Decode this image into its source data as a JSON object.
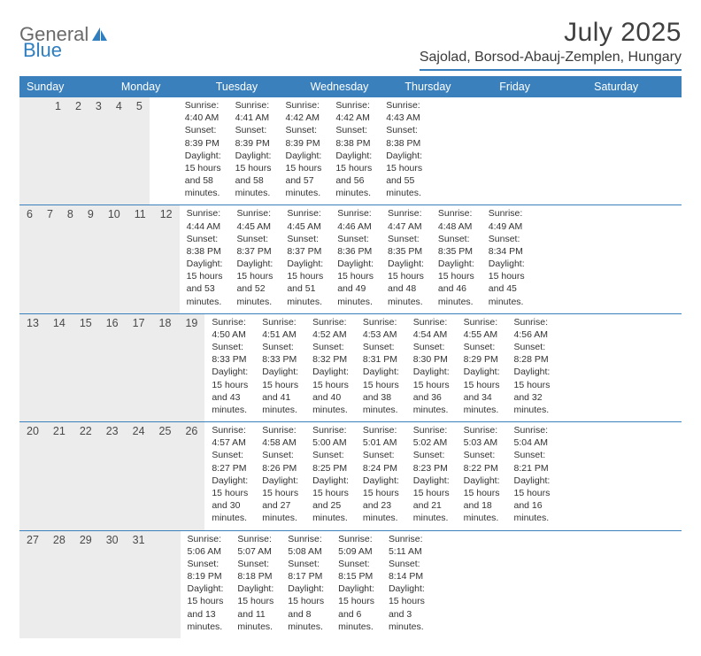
{
  "brand": {
    "name_part1": "General",
    "name_part2": "Blue",
    "text_color": "#6a6a6a",
    "accent_color": "#2f7ec0"
  },
  "title": "July 2025",
  "location": "Sajolad, Borsod-Abauj-Zemplen, Hungary",
  "colors": {
    "header_bar": "#3a80bd",
    "daynum_bg": "#ececec",
    "row_border": "#3a80bd",
    "text": "#333333",
    "title_text": "#404040"
  },
  "fonts": {
    "title_size": 30,
    "location_size": 16,
    "dow_size": 12.5,
    "daynum_size": 12.5,
    "cell_size": 10.5
  },
  "days_of_week": [
    "Sunday",
    "Monday",
    "Tuesday",
    "Wednesday",
    "Thursday",
    "Friday",
    "Saturday"
  ],
  "weeks": [
    [
      {
        "num": "",
        "lines": []
      },
      {
        "num": "",
        "lines": []
      },
      {
        "num": "1",
        "lines": [
          "Sunrise: 4:40 AM",
          "Sunset: 8:39 PM",
          "Daylight: 15 hours",
          "and 58 minutes."
        ]
      },
      {
        "num": "2",
        "lines": [
          "Sunrise: 4:41 AM",
          "Sunset: 8:39 PM",
          "Daylight: 15 hours",
          "and 58 minutes."
        ]
      },
      {
        "num": "3",
        "lines": [
          "Sunrise: 4:42 AM",
          "Sunset: 8:39 PM",
          "Daylight: 15 hours",
          "and 57 minutes."
        ]
      },
      {
        "num": "4",
        "lines": [
          "Sunrise: 4:42 AM",
          "Sunset: 8:38 PM",
          "Daylight: 15 hours",
          "and 56 minutes."
        ]
      },
      {
        "num": "5",
        "lines": [
          "Sunrise: 4:43 AM",
          "Sunset: 8:38 PM",
          "Daylight: 15 hours",
          "and 55 minutes."
        ]
      }
    ],
    [
      {
        "num": "6",
        "lines": [
          "Sunrise: 4:44 AM",
          "Sunset: 8:38 PM",
          "Daylight: 15 hours",
          "and 53 minutes."
        ]
      },
      {
        "num": "7",
        "lines": [
          "Sunrise: 4:45 AM",
          "Sunset: 8:37 PM",
          "Daylight: 15 hours",
          "and 52 minutes."
        ]
      },
      {
        "num": "8",
        "lines": [
          "Sunrise: 4:45 AM",
          "Sunset: 8:37 PM",
          "Daylight: 15 hours",
          "and 51 minutes."
        ]
      },
      {
        "num": "9",
        "lines": [
          "Sunrise: 4:46 AM",
          "Sunset: 8:36 PM",
          "Daylight: 15 hours",
          "and 49 minutes."
        ]
      },
      {
        "num": "10",
        "lines": [
          "Sunrise: 4:47 AM",
          "Sunset: 8:35 PM",
          "Daylight: 15 hours",
          "and 48 minutes."
        ]
      },
      {
        "num": "11",
        "lines": [
          "Sunrise: 4:48 AM",
          "Sunset: 8:35 PM",
          "Daylight: 15 hours",
          "and 46 minutes."
        ]
      },
      {
        "num": "12",
        "lines": [
          "Sunrise: 4:49 AM",
          "Sunset: 8:34 PM",
          "Daylight: 15 hours",
          "and 45 minutes."
        ]
      }
    ],
    [
      {
        "num": "13",
        "lines": [
          "Sunrise: 4:50 AM",
          "Sunset: 8:33 PM",
          "Daylight: 15 hours",
          "and 43 minutes."
        ]
      },
      {
        "num": "14",
        "lines": [
          "Sunrise: 4:51 AM",
          "Sunset: 8:33 PM",
          "Daylight: 15 hours",
          "and 41 minutes."
        ]
      },
      {
        "num": "15",
        "lines": [
          "Sunrise: 4:52 AM",
          "Sunset: 8:32 PM",
          "Daylight: 15 hours",
          "and 40 minutes."
        ]
      },
      {
        "num": "16",
        "lines": [
          "Sunrise: 4:53 AM",
          "Sunset: 8:31 PM",
          "Daylight: 15 hours",
          "and 38 minutes."
        ]
      },
      {
        "num": "17",
        "lines": [
          "Sunrise: 4:54 AM",
          "Sunset: 8:30 PM",
          "Daylight: 15 hours",
          "and 36 minutes."
        ]
      },
      {
        "num": "18",
        "lines": [
          "Sunrise: 4:55 AM",
          "Sunset: 8:29 PM",
          "Daylight: 15 hours",
          "and 34 minutes."
        ]
      },
      {
        "num": "19",
        "lines": [
          "Sunrise: 4:56 AM",
          "Sunset: 8:28 PM",
          "Daylight: 15 hours",
          "and 32 minutes."
        ]
      }
    ],
    [
      {
        "num": "20",
        "lines": [
          "Sunrise: 4:57 AM",
          "Sunset: 8:27 PM",
          "Daylight: 15 hours",
          "and 30 minutes."
        ]
      },
      {
        "num": "21",
        "lines": [
          "Sunrise: 4:58 AM",
          "Sunset: 8:26 PM",
          "Daylight: 15 hours",
          "and 27 minutes."
        ]
      },
      {
        "num": "22",
        "lines": [
          "Sunrise: 5:00 AM",
          "Sunset: 8:25 PM",
          "Daylight: 15 hours",
          "and 25 minutes."
        ]
      },
      {
        "num": "23",
        "lines": [
          "Sunrise: 5:01 AM",
          "Sunset: 8:24 PM",
          "Daylight: 15 hours",
          "and 23 minutes."
        ]
      },
      {
        "num": "24",
        "lines": [
          "Sunrise: 5:02 AM",
          "Sunset: 8:23 PM",
          "Daylight: 15 hours",
          "and 21 minutes."
        ]
      },
      {
        "num": "25",
        "lines": [
          "Sunrise: 5:03 AM",
          "Sunset: 8:22 PM",
          "Daylight: 15 hours",
          "and 18 minutes."
        ]
      },
      {
        "num": "26",
        "lines": [
          "Sunrise: 5:04 AM",
          "Sunset: 8:21 PM",
          "Daylight: 15 hours",
          "and 16 minutes."
        ]
      }
    ],
    [
      {
        "num": "27",
        "lines": [
          "Sunrise: 5:06 AM",
          "Sunset: 8:19 PM",
          "Daylight: 15 hours",
          "and 13 minutes."
        ]
      },
      {
        "num": "28",
        "lines": [
          "Sunrise: 5:07 AM",
          "Sunset: 8:18 PM",
          "Daylight: 15 hours",
          "and 11 minutes."
        ]
      },
      {
        "num": "29",
        "lines": [
          "Sunrise: 5:08 AM",
          "Sunset: 8:17 PM",
          "Daylight: 15 hours",
          "and 8 minutes."
        ]
      },
      {
        "num": "30",
        "lines": [
          "Sunrise: 5:09 AM",
          "Sunset: 8:15 PM",
          "Daylight: 15 hours",
          "and 6 minutes."
        ]
      },
      {
        "num": "31",
        "lines": [
          "Sunrise: 5:11 AM",
          "Sunset: 8:14 PM",
          "Daylight: 15 hours",
          "and 3 minutes."
        ]
      },
      {
        "num": "",
        "lines": []
      },
      {
        "num": "",
        "lines": []
      }
    ]
  ]
}
